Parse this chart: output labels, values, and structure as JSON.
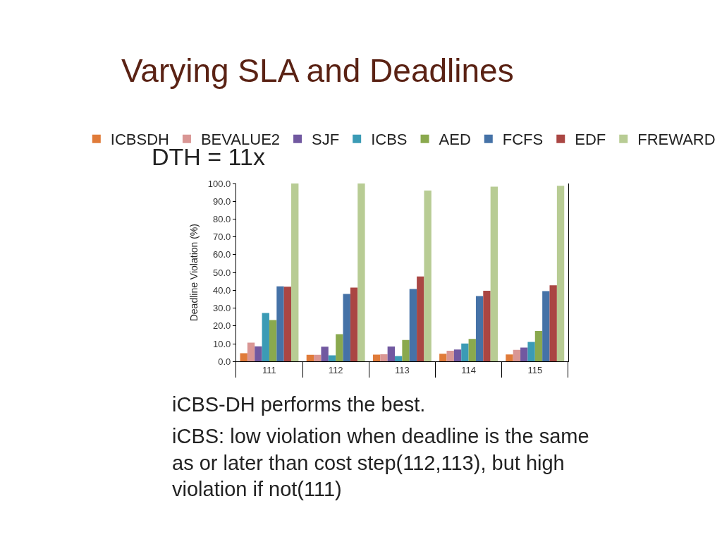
{
  "chart_data": {
    "type": "bar",
    "title": "Varying SLA and Deadlines",
    "subtitle": "DTH = 11x",
    "ylabel": "Deadline Violation (%)",
    "categories": [
      "111",
      "112",
      "113",
      "114",
      "115"
    ],
    "series": [
      {
        "name": "ICBSDH",
        "color": "#e07b39",
        "values": [
          4.7,
          3.8,
          3.9,
          4.4,
          4.0
        ]
      },
      {
        "name": "BEVALUE2",
        "color": "#d99694",
        "values": [
          10.6,
          3.8,
          4.1,
          6.1,
          6.5
        ]
      },
      {
        "name": "SJF",
        "color": "#7158a0",
        "values": [
          8.5,
          8.3,
          8.4,
          6.7,
          7.8
        ]
      },
      {
        "name": "ICBS",
        "color": "#3b9bb5",
        "values": [
          27.3,
          3.5,
          3.1,
          10.1,
          11.0
        ]
      },
      {
        "name": "AED",
        "color": "#8aa94e",
        "values": [
          23.3,
          15.4,
          12.1,
          12.7,
          17.2
        ]
      },
      {
        "name": "FCFS",
        "color": "#4572a7",
        "values": [
          42.2,
          38.0,
          40.7,
          36.8,
          39.5
        ]
      },
      {
        "name": "EDF",
        "color": "#aa4643",
        "values": [
          42.0,
          41.5,
          47.8,
          39.7,
          42.8
        ]
      },
      {
        "name": "FREWARD",
        "color": "#b8cc94",
        "values": [
          100.0,
          100.0,
          96.0,
          98.2,
          98.7
        ]
      }
    ],
    "ylim": [
      0,
      100
    ],
    "yticks": [
      {
        "value": 0,
        "label": "0.0"
      },
      {
        "value": 10,
        "label": "10.0"
      },
      {
        "value": 20,
        "label": "20.0"
      },
      {
        "value": 30,
        "label": "30.0"
      },
      {
        "value": 40,
        "label": "40.0"
      },
      {
        "value": 50,
        "label": "50.0"
      },
      {
        "value": 60,
        "label": "60.0"
      },
      {
        "value": 70,
        "label": "70.0"
      },
      {
        "value": 80,
        "label": "80.0"
      },
      {
        "value": 90,
        "label": "90.0"
      },
      {
        "value": 100,
        "label": "100.0"
      }
    ],
    "legend": "top",
    "annotations": [
      "iCBS-DH performs the best.",
      "iCBS: low violation when deadline is the same as or later than cost step(112,113), but high violation if not(111)"
    ]
  }
}
